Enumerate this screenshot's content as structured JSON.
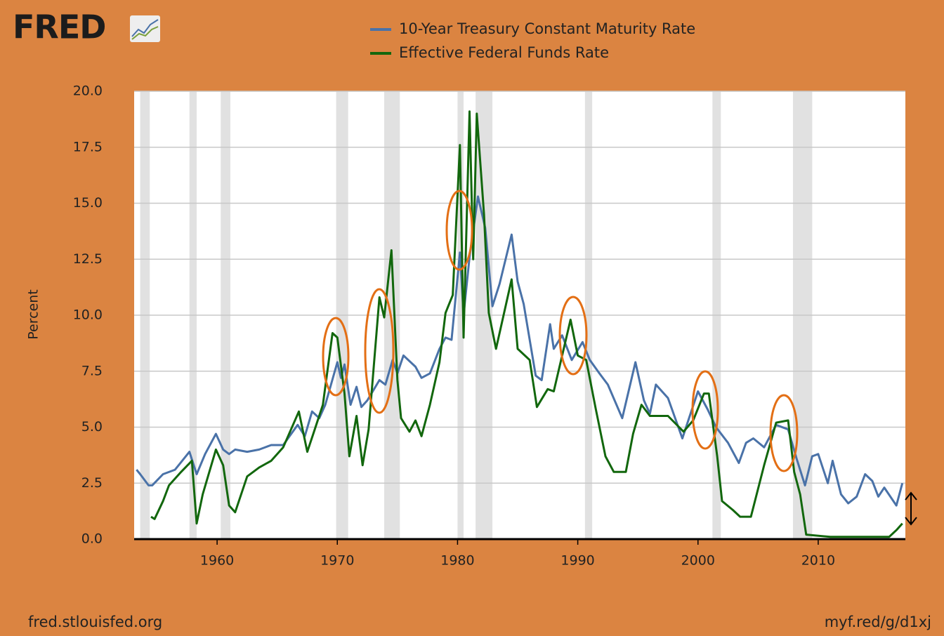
{
  "chart_data": {
    "type": "line",
    "logo": "FRED",
    "ylabel": "Percent",
    "source": "fred.stlouisfed.org",
    "link": "myf.red/g/d1xj",
    "xlim": [
      1953.1,
      2017.25
    ],
    "xticks": [
      1960,
      1970,
      1980,
      1990,
      2000,
      2010
    ],
    "ylim": [
      0,
      20
    ],
    "yticks": [
      {
        "value": 0,
        "label": "0.0"
      },
      {
        "value": 2.5,
        "label": "2.5"
      },
      {
        "value": 5,
        "label": "5.0"
      },
      {
        "value": 7.5,
        "label": "7.5"
      },
      {
        "value": 10,
        "label": "10.0"
      },
      {
        "value": 12.5,
        "label": "12.5"
      },
      {
        "value": 15,
        "label": "15.0"
      },
      {
        "value": 17.5,
        "label": "17.5"
      },
      {
        "value": 20,
        "label": "20.0"
      }
    ],
    "grid": true,
    "recessions": [
      [
        1953.6,
        1954.4
      ],
      [
        1957.7,
        1958.3
      ],
      [
        1960.3,
        1961.1
      ],
      [
        1969.9,
        1970.9
      ],
      [
        1973.9,
        1975.2
      ],
      [
        1980.0,
        1980.5
      ],
      [
        1981.5,
        1982.9
      ],
      [
        1990.6,
        1991.2
      ],
      [
        2001.2,
        2001.9
      ],
      [
        2007.9,
        2009.5
      ]
    ],
    "series": [
      {
        "name": "10-Year Treasury Constant Maturity Rate",
        "color": "#4a72a8",
        "x": [
          1953.3,
          1953.6,
          1954.3,
          1954.6,
          1955.5,
          1956.5,
          1957.7,
          1958.3,
          1959.0,
          1959.9,
          1960.5,
          1961.0,
          1961.5,
          1962.5,
          1963.5,
          1964.5,
          1965.5,
          1966.7,
          1967.3,
          1967.9,
          1968.5,
          1969.0,
          1970.0,
          1970.3,
          1970.6,
          1971.1,
          1971.6,
          1972.0,
          1972.5,
          1973.5,
          1974.0,
          1974.6,
          1975.0,
          1975.5,
          1976.5,
          1977.0,
          1977.7,
          1978.5,
          1979.0,
          1979.5,
          1980.2,
          1980.5,
          1981.0,
          1981.7,
          1982.3,
          1982.9,
          1983.5,
          1984.5,
          1985.0,
          1985.5,
          1986.5,
          1987.0,
          1987.7,
          1988.0,
          1988.7,
          1989.5,
          1990.4,
          1991.0,
          1991.8,
          1992.5,
          1993.7,
          1994.8,
          1995.5,
          1996.0,
          1996.5,
          1997.5,
          1998.7,
          1999.5,
          2000.0,
          2000.8,
          2001.5,
          2002.5,
          2003.4,
          2004.0,
          2004.6,
          2005.5,
          2006.5,
          2007.5,
          2008.2,
          2008.9,
          2009.5,
          2010.0,
          2010.8,
          2011.2,
          2011.9,
          2012.5,
          2013.2,
          2013.9,
          2014.5,
          2015.0,
          2015.5,
          2016.5,
          2017.0
        ],
        "values": [
          3.1,
          2.9,
          2.4,
          2.4,
          2.9,
          3.1,
          3.9,
          2.9,
          3.8,
          4.7,
          4.0,
          3.8,
          4.0,
          3.9,
          4.0,
          4.2,
          4.2,
          5.1,
          4.6,
          5.7,
          5.4,
          6.0,
          7.9,
          7.2,
          7.8,
          6.0,
          6.8,
          5.9,
          6.2,
          7.1,
          6.9,
          8.0,
          7.4,
          8.2,
          7.7,
          7.2,
          7.4,
          8.5,
          9.0,
          8.9,
          12.8,
          10.0,
          12.6,
          15.3,
          13.9,
          10.4,
          11.4,
          13.6,
          11.5,
          10.5,
          7.3,
          7.1,
          9.6,
          8.5,
          9.1,
          8.0,
          8.8,
          8.0,
          7.4,
          6.9,
          5.4,
          7.9,
          6.2,
          5.6,
          6.9,
          6.3,
          4.5,
          5.8,
          6.6,
          5.8,
          5.0,
          4.3,
          3.4,
          4.3,
          4.5,
          4.1,
          5.1,
          4.9,
          3.6,
          2.4,
          3.7,
          3.8,
          2.5,
          3.5,
          2.0,
          1.6,
          1.9,
          2.9,
          2.6,
          1.9,
          2.3,
          1.5,
          2.5
        ]
      },
      {
        "name": "Effective Federal Funds Rate",
        "color": "#12670d",
        "x": [
          1954.5,
          1954.8,
          1955.5,
          1956.0,
          1957.0,
          1957.9,
          1958.3,
          1958.8,
          1959.9,
          1960.5,
          1961.0,
          1961.5,
          1962.5,
          1963.5,
          1964.5,
          1965.5,
          1966.8,
          1967.5,
          1968.0,
          1968.8,
          1969.6,
          1970.0,
          1970.6,
          1971.0,
          1971.6,
          1972.1,
          1972.6,
          1973.5,
          1973.9,
          1974.5,
          1975.0,
          1975.3,
          1976.0,
          1976.5,
          1977.0,
          1977.7,
          1978.5,
          1979.0,
          1979.6,
          1980.2,
          1980.5,
          1981.0,
          1981.3,
          1981.6,
          1982.2,
          1982.6,
          1983.2,
          1984.5,
          1985.0,
          1986.0,
          1986.6,
          1987.5,
          1988.0,
          1989.4,
          1990.0,
          1990.7,
          1991.5,
          1992.3,
          1993.0,
          1994.0,
          1994.6,
          1995.3,
          1996.0,
          1997.5,
          1998.8,
          1999.6,
          2000.5,
          2000.9,
          2001.6,
          2002.0,
          2002.9,
          2003.5,
          2004.4,
          2005.5,
          2006.5,
          2007.5,
          2008.0,
          2008.5,
          2009.0,
          2011.0,
          2015.9,
          2016.5,
          2017.0
        ],
        "values": [
          1.0,
          0.9,
          1.7,
          2.4,
          3.0,
          3.5,
          0.7,
          2.0,
          4.0,
          3.3,
          1.5,
          1.2,
          2.8,
          3.2,
          3.5,
          4.1,
          5.7,
          3.9,
          4.7,
          6.0,
          9.2,
          9.0,
          6.5,
          3.7,
          5.5,
          3.3,
          4.9,
          10.8,
          9.9,
          12.9,
          7.1,
          5.4,
          4.8,
          5.3,
          4.6,
          6.0,
          7.9,
          10.1,
          10.9,
          17.6,
          9.0,
          19.1,
          12.5,
          19.0,
          14.5,
          10.1,
          8.5,
          11.6,
          8.5,
          8.0,
          5.9,
          6.7,
          6.6,
          9.8,
          8.2,
          8.0,
          5.8,
          3.7,
          3.0,
          3.0,
          4.7,
          6.0,
          5.5,
          5.5,
          4.8,
          5.3,
          6.5,
          6.5,
          3.7,
          1.7,
          1.3,
          1.0,
          1.0,
          3.3,
          5.2,
          5.3,
          3.0,
          2.0,
          0.2,
          0.1,
          0.1,
          0.4,
          0.7
        ]
      }
    ]
  }
}
